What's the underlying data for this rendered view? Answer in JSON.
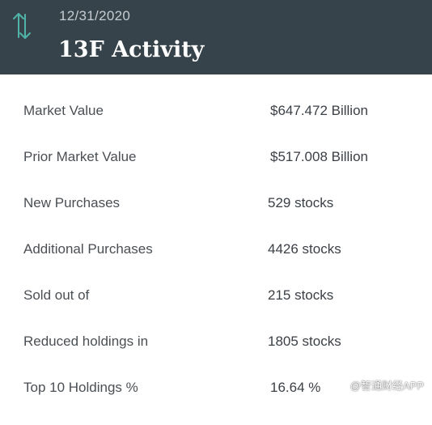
{
  "header": {
    "date": "12/31/2020",
    "title": "13F Activity",
    "icon": "swap-vertical-arrows-icon",
    "accent_color": "#4fb3a7",
    "background_color": "#37434a"
  },
  "rows": [
    {
      "label": "Market Value",
      "value": "$647.472 Billion"
    },
    {
      "label": "Prior Market Value",
      "value": "$517.008 Billion"
    },
    {
      "label": "New Purchases",
      "value": "529 stocks"
    },
    {
      "label": "Additional Purchases",
      "value": "4426 stocks"
    },
    {
      "label": "Sold out of",
      "value": "215 stocks"
    },
    {
      "label": "Reduced holdings in",
      "value": "1805 stocks"
    },
    {
      "label": "Top 10 Holdings %",
      "value": "16.64 %"
    }
  ],
  "watermark": "@智通财经APP"
}
